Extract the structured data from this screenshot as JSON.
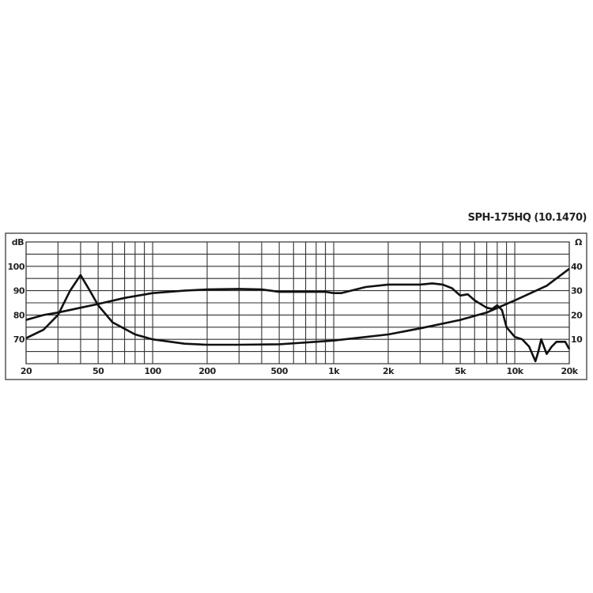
{
  "chart_data": {
    "type": "line",
    "title": "SPH-175HQ (10.1470)",
    "x_scale": "log",
    "xlim": [
      20,
      20000
    ],
    "x_ticks": [
      20,
      50,
      100,
      200,
      500,
      1000,
      2000,
      5000,
      10000,
      20000
    ],
    "x_tick_labels": [
      "20",
      "50",
      "100",
      "200",
      "500",
      "1k",
      "2k",
      "5k",
      "10k",
      "20k"
    ],
    "x_grid": [
      20,
      30,
      40,
      50,
      60,
      70,
      80,
      90,
      100,
      200,
      300,
      400,
      500,
      600,
      700,
      800,
      900,
      1000,
      2000,
      3000,
      4000,
      5000,
      6000,
      7000,
      8000,
      9000,
      10000,
      20000
    ],
    "left_axis": {
      "unit": "dB",
      "ylim": [
        60,
        110
      ],
      "ticks": [
        100,
        90,
        80,
        70
      ],
      "tick_labels": [
        "100",
        "90",
        "80",
        "70"
      ]
    },
    "right_axis": {
      "unit": "Ω",
      "ylim": [
        0,
        50
      ],
      "ticks": [
        40,
        30,
        20,
        10
      ],
      "tick_labels": [
        "40",
        "30",
        "20",
        "10"
      ]
    },
    "grid": true,
    "series": [
      {
        "axis": "left",
        "x": [
          20,
          25,
          30,
          40,
          50,
          70,
          100,
          150,
          200,
          300,
          400,
          500,
          700,
          900,
          1000,
          1100,
          1500,
          2000,
          3000,
          3500,
          4000,
          4500,
          5000,
          5500,
          6000,
          7000,
          7500,
          8000,
          8500,
          9000,
          10000,
          11000,
          12000,
          13000,
          13500,
          14000,
          15000,
          16000,
          17000,
          19000,
          20000
        ],
        "y": [
          78,
          80,
          81,
          83,
          84.5,
          87,
          89,
          90,
          90.5,
          90.7,
          90.5,
          89.5,
          89.5,
          89.5,
          89,
          89,
          91.5,
          92.5,
          92.5,
          93,
          92.5,
          91,
          88,
          88.5,
          86,
          83,
          82.5,
          84,
          82,
          75,
          71,
          70,
          67,
          61,
          65,
          70,
          64,
          67,
          69,
          69,
          66
        ]
      },
      {
        "axis": "right",
        "x": [
          20,
          25,
          30,
          35,
          40,
          45,
          50,
          60,
          80,
          100,
          150,
          200,
          300,
          500,
          700,
          1000,
          2000,
          3000,
          5000,
          7000,
          10000,
          15000,
          20000
        ],
        "y": [
          10.5,
          14,
          20,
          30,
          36.4,
          30,
          24,
          17,
          12,
          10,
          8.2,
          7.8,
          7.8,
          8,
          8.7,
          9.5,
          12,
          14.5,
          18,
          21,
          26,
          32,
          39
        ]
      }
    ]
  }
}
